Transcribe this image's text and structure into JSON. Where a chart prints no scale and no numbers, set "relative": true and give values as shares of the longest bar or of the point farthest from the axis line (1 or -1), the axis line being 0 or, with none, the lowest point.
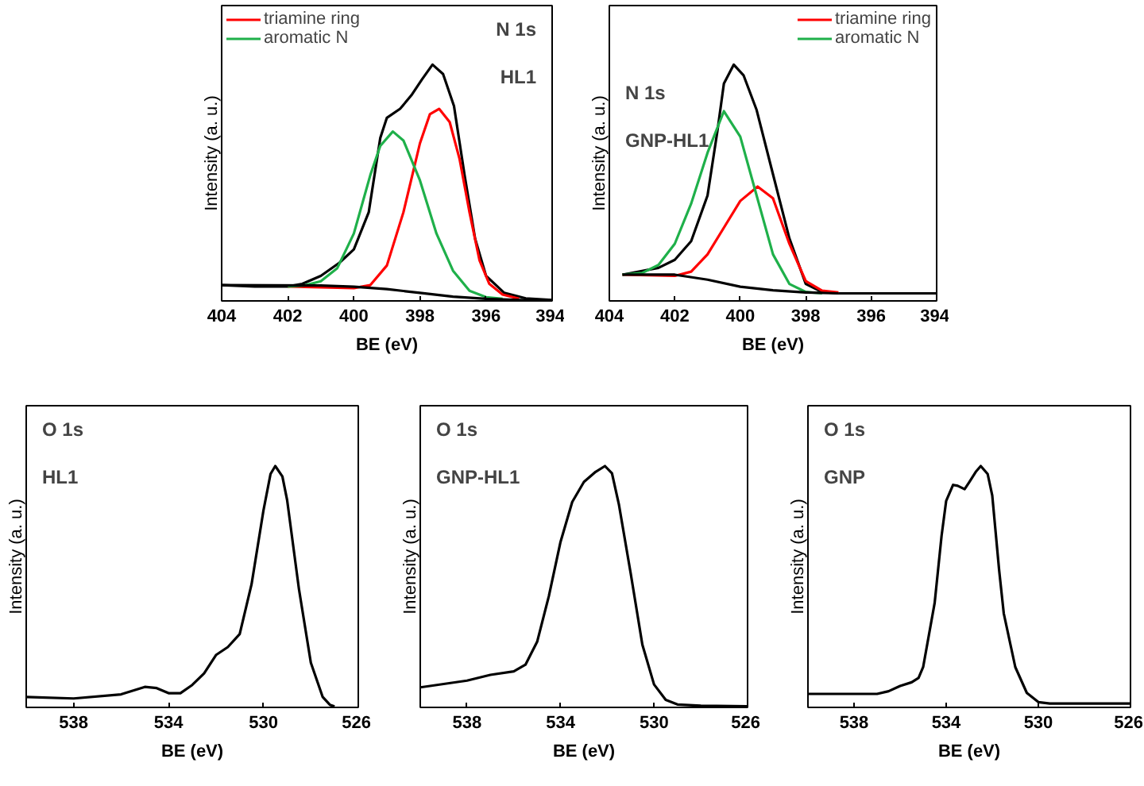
{
  "chart_data": [
    {
      "type": "line",
      "relative": true,
      "xlabel": "BE (eV)",
      "ylabel": "Intensity (a. u.)",
      "xlim": [
        404,
        394
      ],
      "xticks": [
        404,
        402,
        400,
        398,
        396,
        394
      ],
      "tick_labels": "x",
      "legend": "top left",
      "annotations": [
        "N 1s",
        "HL1"
      ],
      "series": [
        {
          "color": "#000000",
          "x": [
            404,
            403,
            402,
            401.56,
            401,
            400.43,
            400,
            399.55,
            399.2,
            399,
            398.6,
            398.26,
            397.94,
            397.62,
            397.3,
            396.97,
            396.65,
            396.33,
            396,
            395.45,
            394.8,
            394
          ],
          "values": [
            0.067,
            0.061,
            0.061,
            0.072,
            0.106,
            0.162,
            0.218,
            0.375,
            0.69,
            0.775,
            0.813,
            0.87,
            0.937,
            1.0,
            0.96,
            0.825,
            0.533,
            0.263,
            0.106,
            0.034,
            0.011,
            0.004
          ]
        },
        {
          "name": "triamine ring",
          "color": "#ff0000",
          "x": [
            402,
            400,
            399.5,
            399,
            398.5,
            398,
            397.7,
            397.42,
            397.1,
            396.8,
            396.5,
            396.2,
            395.9,
            395.5,
            395
          ],
          "values": [
            0.061,
            0.054,
            0.067,
            0.15,
            0.375,
            0.667,
            0.79,
            0.813,
            0.757,
            0.6,
            0.375,
            0.173,
            0.072,
            0.027,
            0.009
          ]
        },
        {
          "name": "aromatic N",
          "color": "#1fb04a",
          "x": [
            402,
            401.5,
            401,
            400.5,
            400,
            399.5,
            399.2,
            398.82,
            398.5,
            398,
            397.5,
            397,
            396.5,
            396,
            395.5
          ],
          "values": [
            0.061,
            0.065,
            0.083,
            0.139,
            0.285,
            0.533,
            0.656,
            0.717,
            0.679,
            0.51,
            0.285,
            0.128,
            0.043,
            0.016,
            0.009
          ]
        },
        {
          "color": "#000000",
          "x": [
            404,
            401,
            400,
            399,
            398,
            397,
            396,
            395,
            394
          ],
          "values": [
            0.067,
            0.065,
            0.06,
            0.05,
            0.034,
            0.018,
            0.009,
            0.004,
            0.002
          ]
        }
      ]
    },
    {
      "type": "line",
      "relative": true,
      "xlabel": "BE (eV)",
      "ylabel": "Intensity (a. u.)",
      "xlim": [
        404,
        394
      ],
      "xticks": [
        404,
        402,
        400,
        398,
        396,
        394
      ],
      "tick_labels": "x",
      "legend": "top right",
      "annotations": [
        "N 1s",
        "GNP-HL1"
      ],
      "series": [
        {
          "color": "#000000",
          "x": [
            403.6,
            402.5,
            402,
            401.5,
            401,
            400.7,
            400.5,
            400.2,
            399.9,
            399.5,
            399,
            398.5,
            398,
            397.5,
            397,
            396,
            395,
            394
          ],
          "values": [
            0.111,
            0.14,
            0.174,
            0.253,
            0.446,
            0.717,
            0.92,
            1.0,
            0.955,
            0.808,
            0.536,
            0.265,
            0.072,
            0.038,
            0.032,
            0.032,
            0.032,
            0.032
          ]
        },
        {
          "name": "triamine ring",
          "color": "#ff0000",
          "x": [
            403.6,
            402,
            401.5,
            401,
            400.5,
            400,
            399.47,
            399,
            398.5,
            398,
            397.5,
            397
          ],
          "values": [
            0.111,
            0.106,
            0.124,
            0.197,
            0.31,
            0.423,
            0.484,
            0.434,
            0.242,
            0.084,
            0.043,
            0.036
          ]
        },
        {
          "name": "aromatic N",
          "color": "#1fb04a",
          "x": [
            403.6,
            403,
            402.5,
            402,
            401.5,
            401,
            400.5,
            400,
            399.5,
            399,
            398.5,
            398,
            397.5
          ],
          "values": [
            0.111,
            0.118,
            0.152,
            0.242,
            0.412,
            0.627,
            0.803,
            0.695,
            0.446,
            0.197,
            0.072,
            0.038,
            0.032
          ]
        },
        {
          "color": "#000000",
          "x": [
            403.6,
            402,
            401,
            400,
            399,
            398,
            397
          ],
          "values": [
            0.111,
            0.111,
            0.09,
            0.06,
            0.045,
            0.036,
            0.032
          ]
        }
      ]
    },
    {
      "type": "line",
      "relative": true,
      "xlabel": "BE (eV)",
      "ylabel": "Intensity (a. u.)",
      "xlim": [
        540,
        526
      ],
      "xticks": [
        538,
        534,
        530,
        526
      ],
      "tick_labels": "x",
      "annotations": [
        "O 1s",
        "HL1"
      ],
      "series": [
        {
          "color": "#000000",
          "x": [
            540,
            538,
            536,
            535,
            534.5,
            534,
            533.5,
            533,
            532.5,
            532,
            531.5,
            531,
            530.5,
            530,
            529.7,
            529.5,
            529.2,
            529,
            528.5,
            528,
            527.5,
            527.2,
            527
          ],
          "values": [
            0.043,
            0.037,
            0.054,
            0.085,
            0.08,
            0.059,
            0.059,
            0.093,
            0.141,
            0.217,
            0.25,
            0.304,
            0.51,
            0.815,
            0.967,
            1.0,
            0.957,
            0.859,
            0.489,
            0.185,
            0.043,
            0.011,
            0.004
          ]
        }
      ]
    },
    {
      "type": "line",
      "relative": true,
      "xlabel": "BE (eV)",
      "ylabel": "Intensity (a. u.)",
      "xlim": [
        540,
        526
      ],
      "xticks": [
        538,
        534,
        530,
        526
      ],
      "tick_labels": "x",
      "annotations": [
        "O 1s",
        "GNP-HL1"
      ],
      "series": [
        {
          "color": "#000000",
          "x": [
            540,
            538,
            537,
            536,
            535.5,
            535,
            534.5,
            534,
            533.5,
            533,
            532.5,
            532.1,
            531.8,
            531.5,
            531,
            530.5,
            530,
            529.5,
            529,
            528,
            526
          ],
          "values": [
            0.083,
            0.111,
            0.135,
            0.149,
            0.177,
            0.272,
            0.461,
            0.686,
            0.851,
            0.934,
            0.976,
            1.0,
            0.97,
            0.839,
            0.556,
            0.26,
            0.095,
            0.031,
            0.012,
            0.007,
            0.005
          ]
        }
      ]
    },
    {
      "type": "line",
      "relative": true,
      "xlabel": "BE (eV)",
      "ylabel": "Intensity (a. u.)",
      "xlim": [
        540,
        526
      ],
      "xticks": [
        538,
        534,
        530,
        526
      ],
      "tick_labels": "x",
      "annotations": [
        "O 1s",
        "GNP"
      ],
      "series": [
        {
          "color": "#000000",
          "x": [
            540,
            537,
            536.5,
            536,
            535.5,
            535.2,
            535,
            534.5,
            534.2,
            534,
            533.7,
            533.5,
            533.2,
            533,
            532.7,
            532.5,
            532.2,
            532,
            531.7,
            531.5,
            531,
            530.5,
            530,
            529.5,
            526
          ],
          "values": [
            0.056,
            0.056,
            0.067,
            0.089,
            0.104,
            0.122,
            0.167,
            0.433,
            0.711,
            0.856,
            0.922,
            0.918,
            0.904,
            0.933,
            0.978,
            1.0,
            0.967,
            0.878,
            0.567,
            0.389,
            0.167,
            0.06,
            0.022,
            0.016,
            0.016
          ]
        }
      ]
    }
  ]
}
